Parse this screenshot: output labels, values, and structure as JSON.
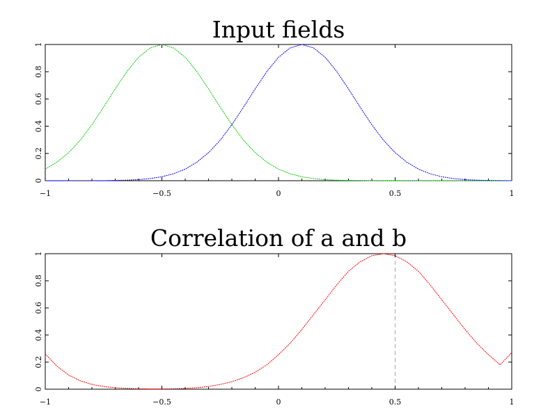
{
  "chart_data": [
    {
      "type": "line",
      "title": "Input fields",
      "xlabel": "",
      "ylabel": "",
      "xlim": [
        -1,
        1
      ],
      "ylim": [
        0,
        1
      ],
      "x_ticks": [
        -1,
        -0.5,
        0,
        0.5,
        1
      ],
      "x_tick_labels": [
        "−1",
        "−0.5",
        "0",
        "0.5",
        "1"
      ],
      "y_ticks": [
        0,
        0.2,
        0.4,
        0.6,
        0.8,
        1
      ],
      "y_tick_labels": [
        "0",
        "0.2",
        "0.4",
        "0.6",
        "0.8",
        "1"
      ],
      "grid": false,
      "series": [
        {
          "color": "#00cc00",
          "x": [
            -1.0,
            -0.95,
            -0.9,
            -0.85,
            -0.8,
            -0.75,
            -0.7,
            -0.65,
            -0.6,
            -0.55,
            -0.5,
            -0.45,
            -0.4,
            -0.35,
            -0.3,
            -0.25,
            -0.2,
            -0.15,
            -0.1,
            -0.05,
            0.0,
            0.05,
            0.1,
            0.15,
            0.2,
            0.25,
            0.3,
            0.35,
            0.4,
            0.45,
            0.5,
            0.55,
            0.6,
            0.65,
            0.7,
            0.75,
            0.8,
            0.85,
            0.9,
            0.95,
            1.0
          ],
          "y": [
            0.085,
            0.136,
            0.206,
            0.297,
            0.411,
            0.54,
            0.674,
            0.801,
            0.906,
            0.975,
            1.0,
            0.975,
            0.906,
            0.801,
            0.674,
            0.54,
            0.411,
            0.297,
            0.206,
            0.136,
            0.085,
            0.051,
            0.029,
            0.016,
            0.008,
            0.004,
            0.002,
            0.001,
            0.0,
            0.0,
            0.0,
            0.0,
            0.0,
            0.0,
            0.0,
            0.0,
            0.0,
            0.0,
            0.0,
            0.0,
            0.0
          ]
        },
        {
          "color": "#0000ff",
          "x": [
            -1.0,
            -0.95,
            -0.9,
            -0.85,
            -0.8,
            -0.75,
            -0.7,
            -0.65,
            -0.6,
            -0.55,
            -0.5,
            -0.45,
            -0.4,
            -0.35,
            -0.3,
            -0.25,
            -0.2,
            -0.15,
            -0.1,
            -0.05,
            0.0,
            0.05,
            0.1,
            0.15,
            0.2,
            0.25,
            0.3,
            0.35,
            0.4,
            0.45,
            0.5,
            0.55,
            0.6,
            0.65,
            0.7,
            0.75,
            0.8,
            0.85,
            0.9,
            0.95,
            1.0
          ],
          "y": [
            0.0,
            0.0,
            0.0,
            0.0,
            0.0,
            0.0,
            0.002,
            0.004,
            0.008,
            0.016,
            0.029,
            0.051,
            0.085,
            0.136,
            0.206,
            0.297,
            0.411,
            0.54,
            0.674,
            0.801,
            0.906,
            0.975,
            1.0,
            0.975,
            0.906,
            0.801,
            0.674,
            0.54,
            0.411,
            0.297,
            0.206,
            0.136,
            0.085,
            0.051,
            0.029,
            0.016,
            0.008,
            0.004,
            0.002,
            0.001,
            0.0
          ]
        }
      ]
    },
    {
      "type": "line",
      "title": "Correlation of a and b",
      "xlabel": "",
      "ylabel": "",
      "xlim": [
        -1,
        1
      ],
      "ylim": [
        0,
        1
      ],
      "x_ticks": [
        -1,
        -0.5,
        0,
        0.5,
        1
      ],
      "x_tick_labels": [
        "−1",
        "−0.5",
        "0",
        "0.5",
        "1"
      ],
      "y_ticks": [
        0,
        0.2,
        0.4,
        0.6,
        0.8,
        1
      ],
      "y_tick_labels": [
        "0",
        "0.2",
        "0.4",
        "0.6",
        "0.8",
        "1"
      ],
      "grid": false,
      "series": [
        {
          "color": "#ff0000",
          "x": [
            -1.0,
            -0.95,
            -0.9,
            -0.85,
            -0.8,
            -0.75,
            -0.7,
            -0.65,
            -0.6,
            -0.55,
            -0.5,
            -0.45,
            -0.4,
            -0.35,
            -0.3,
            -0.25,
            -0.2,
            -0.15,
            -0.1,
            -0.05,
            0.0,
            0.05,
            0.1,
            0.15,
            0.2,
            0.25,
            0.3,
            0.35,
            0.4,
            0.45,
            0.5,
            0.55,
            0.6,
            0.65,
            0.7,
            0.75,
            0.8,
            0.85,
            0.9,
            0.95,
            1.0
          ],
          "y": [
            0.26,
            0.17,
            0.105,
            0.062,
            0.035,
            0.02,
            0.011,
            0.006,
            0.003,
            0.002,
            0.002,
            0.003,
            0.006,
            0.011,
            0.02,
            0.035,
            0.055,
            0.085,
            0.125,
            0.18,
            0.255,
            0.34,
            0.44,
            0.55,
            0.66,
            0.77,
            0.87,
            0.94,
            0.985,
            1.0,
            0.985,
            0.94,
            0.87,
            0.77,
            0.66,
            0.55,
            0.44,
            0.34,
            0.255,
            0.18,
            0.27
          ]
        }
      ],
      "reference_line": {
        "x": 0.5,
        "style": "dashed",
        "color": "#aaaaaa"
      }
    }
  ]
}
